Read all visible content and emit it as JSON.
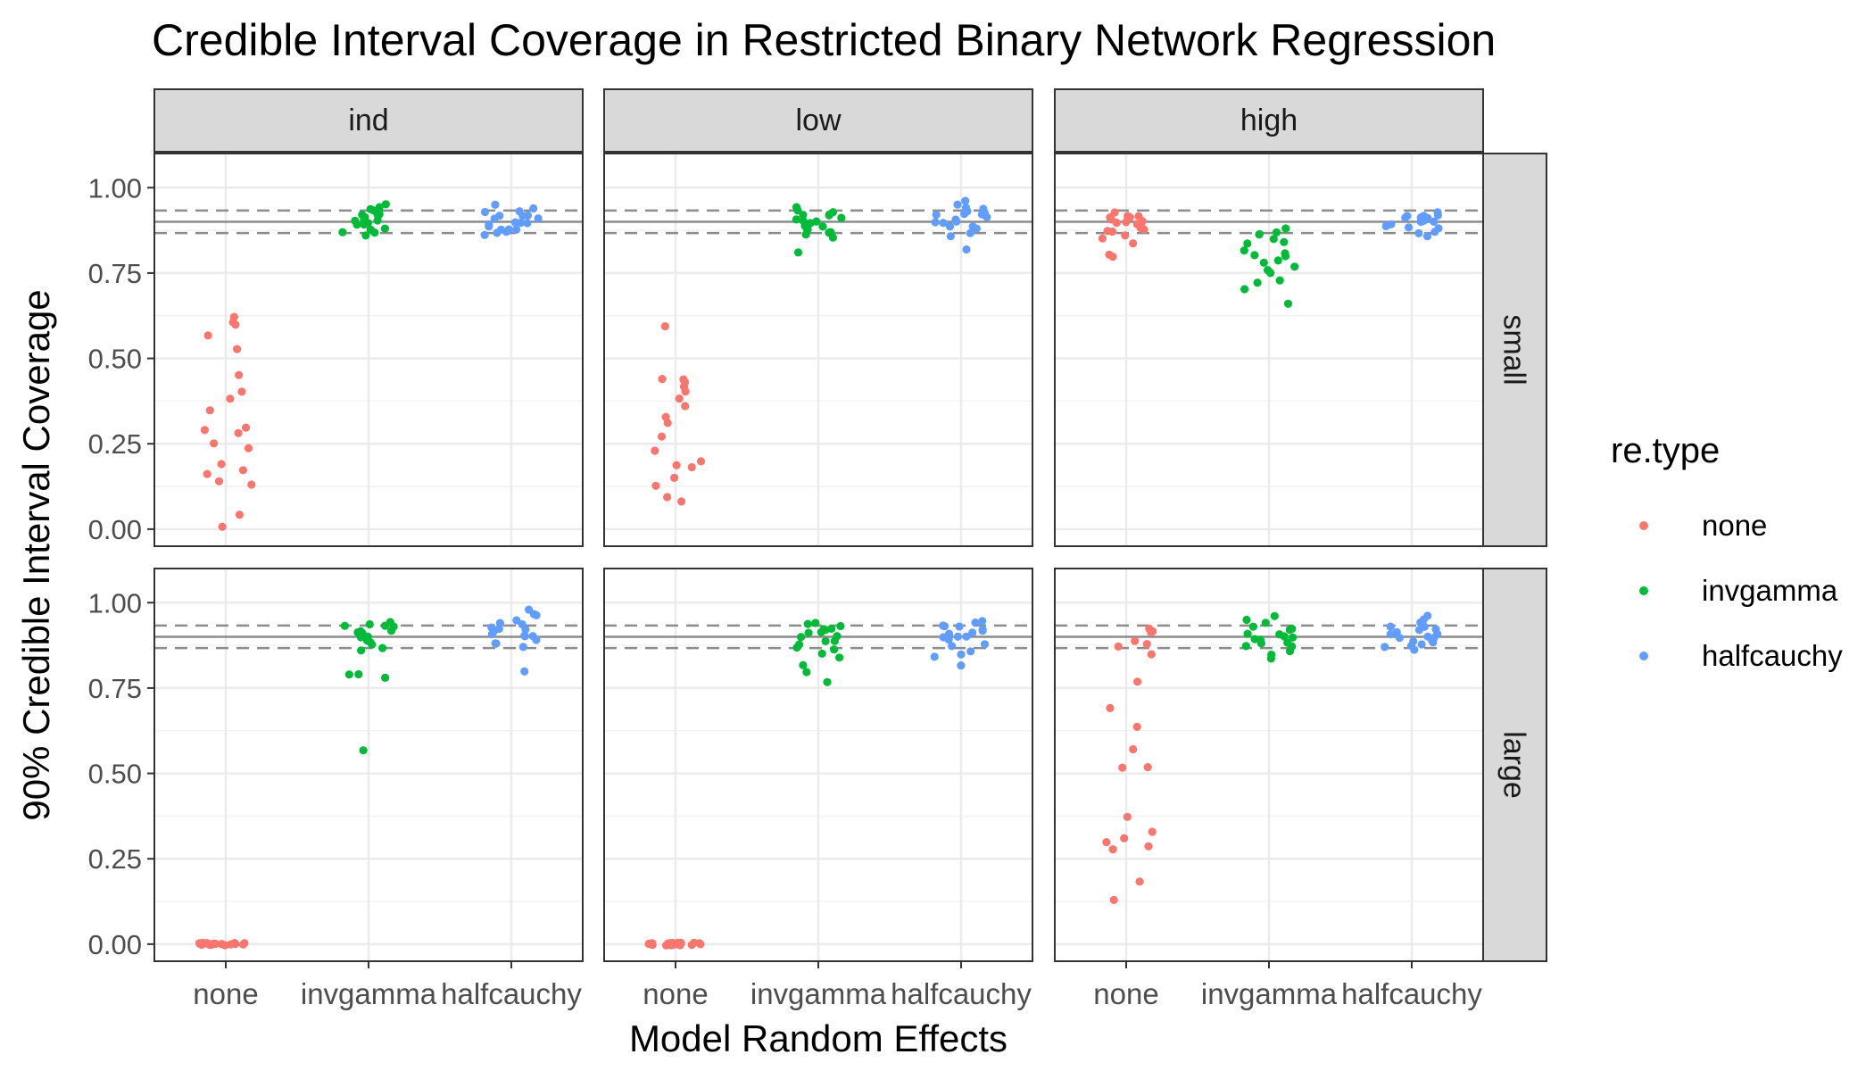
{
  "chart_data": {
    "type": "scatter",
    "title": "Credible Interval Coverage in Restricted Binary Network Regression",
    "xlabel": "Model Random Effects",
    "ylabel": "90% Credible Interval Coverage",
    "categories": [
      "none",
      "invgamma",
      "halfcauchy"
    ],
    "ylim": [
      -0.05,
      1.1
    ],
    "yticks": [
      0.0,
      0.25,
      0.5,
      0.75,
      1.0
    ],
    "ytick_labels": [
      "0.00",
      "0.25",
      "0.50",
      "0.75",
      "1.00"
    ],
    "col_facets": [
      "ind",
      "low",
      "high"
    ],
    "row_facets": [
      "small",
      "large"
    ],
    "reference_lines": {
      "solid": 0.9,
      "dashed": [
        0.867,
        0.933
      ]
    },
    "grid": true,
    "legend": {
      "title": "re.type",
      "placement": "right",
      "entries": [
        {
          "name": "none",
          "color": "#F8766D"
        },
        {
          "name": "invgamma",
          "color": "#00BA38"
        },
        {
          "name": "halfcauchy",
          "color": "#619CFF"
        }
      ]
    },
    "panels": [
      {
        "row": "small",
        "col": "ind",
        "values": {
          "none": [
            0.62,
            0.61,
            0.6,
            0.57,
            0.53,
            0.45,
            0.4,
            0.38,
            0.35,
            0.3,
            0.29,
            0.28,
            0.25,
            0.24,
            0.19,
            0.17,
            0.16,
            0.14,
            0.13,
            0.04,
            0.01
          ],
          "invgamma": [
            0.95,
            0.94,
            0.94,
            0.93,
            0.93,
            0.92,
            0.92,
            0.91,
            0.91,
            0.9,
            0.9,
            0.89,
            0.89,
            0.88,
            0.88,
            0.87,
            0.87,
            0.86,
            0.92,
            0.9
          ],
          "halfcauchy": [
            0.95,
            0.94,
            0.93,
            0.93,
            0.92,
            0.92,
            0.91,
            0.91,
            0.9,
            0.9,
            0.89,
            0.89,
            0.88,
            0.88,
            0.87,
            0.87,
            0.86,
            0.92,
            0.9,
            0.88
          ]
        }
      },
      {
        "row": "small",
        "col": "low",
        "values": {
          "none": [
            0.59,
            0.44,
            0.44,
            0.43,
            0.42,
            0.4,
            0.38,
            0.36,
            0.33,
            0.31,
            0.27,
            0.23,
            0.2,
            0.19,
            0.18,
            0.15,
            0.13,
            0.09,
            0.08
          ],
          "invgamma": [
            0.94,
            0.93,
            0.93,
            0.92,
            0.92,
            0.91,
            0.91,
            0.9,
            0.9,
            0.89,
            0.89,
            0.88,
            0.88,
            0.87,
            0.87,
            0.86,
            0.85,
            0.81,
            0.9,
            0.92
          ],
          "halfcauchy": [
            0.96,
            0.95,
            0.94,
            0.93,
            0.93,
            0.92,
            0.92,
            0.91,
            0.91,
            0.9,
            0.9,
            0.89,
            0.89,
            0.88,
            0.87,
            0.86,
            0.82,
            0.92,
            0.94,
            0.9
          ]
        }
      },
      {
        "row": "small",
        "col": "high",
        "values": {
          "none": [
            0.93,
            0.92,
            0.92,
            0.91,
            0.91,
            0.9,
            0.9,
            0.89,
            0.89,
            0.88,
            0.88,
            0.87,
            0.87,
            0.86,
            0.85,
            0.84,
            0.8,
            0.8,
            0.9,
            0.91
          ],
          "invgamma": [
            0.88,
            0.87,
            0.86,
            0.85,
            0.84,
            0.82,
            0.81,
            0.8,
            0.79,
            0.78,
            0.77,
            0.76,
            0.75,
            0.73,
            0.72,
            0.7,
            0.66,
            0.86,
            0.84,
            0.8
          ],
          "halfcauchy": [
            0.93,
            0.92,
            0.92,
            0.91,
            0.91,
            0.9,
            0.9,
            0.89,
            0.89,
            0.88,
            0.88,
            0.87,
            0.87,
            0.86,
            0.91,
            0.9,
            0.89,
            0.92
          ]
        }
      },
      {
        "row": "large",
        "col": "ind",
        "values": {
          "none": [
            0,
            0,
            0,
            0,
            0,
            0,
            0,
            0,
            0,
            0,
            0,
            0,
            0,
            0,
            0,
            0,
            0,
            0,
            0,
            0
          ],
          "invgamma": [
            0.94,
            0.94,
            0.93,
            0.93,
            0.92,
            0.92,
            0.91,
            0.9,
            0.9,
            0.89,
            0.88,
            0.88,
            0.87,
            0.86,
            0.79,
            0.79,
            0.78,
            0.57,
            0.93,
            0.91
          ],
          "halfcauchy": [
            0.98,
            0.97,
            0.96,
            0.95,
            0.94,
            0.93,
            0.92,
            0.91,
            0.91,
            0.9,
            0.9,
            0.89,
            0.88,
            0.88,
            0.87,
            0.8,
            0.94,
            0.92,
            0.9
          ]
        }
      },
      {
        "row": "large",
        "col": "low",
        "values": {
          "none": [
            0,
            0,
            0,
            0,
            0,
            0,
            0,
            0,
            0,
            0,
            0,
            0,
            0,
            0,
            0,
            0,
            0,
            0,
            0,
            0
          ],
          "invgamma": [
            0.94,
            0.94,
            0.93,
            0.92,
            0.92,
            0.91,
            0.91,
            0.9,
            0.9,
            0.89,
            0.89,
            0.88,
            0.87,
            0.86,
            0.85,
            0.84,
            0.82,
            0.8,
            0.77,
            0.92
          ],
          "halfcauchy": [
            0.95,
            0.94,
            0.93,
            0.93,
            0.92,
            0.91,
            0.91,
            0.9,
            0.9,
            0.89,
            0.88,
            0.87,
            0.86,
            0.85,
            0.84,
            0.82,
            0.92,
            0.9,
            0.93
          ]
        }
      },
      {
        "row": "large",
        "col": "high",
        "values": {
          "none": [
            0.92,
            0.92,
            0.91,
            0.89,
            0.88,
            0.87,
            0.85,
            0.77,
            0.69,
            0.64,
            0.57,
            0.52,
            0.52,
            0.37,
            0.33,
            0.31,
            0.3,
            0.29,
            0.28,
            0.18,
            0.13
          ],
          "invgamma": [
            0.96,
            0.95,
            0.94,
            0.93,
            0.92,
            0.91,
            0.91,
            0.9,
            0.9,
            0.89,
            0.88,
            0.88,
            0.87,
            0.86,
            0.85,
            0.84,
            0.92,
            0.89,
            0.87
          ],
          "halfcauchy": [
            0.96,
            0.95,
            0.94,
            0.93,
            0.92,
            0.92,
            0.91,
            0.91,
            0.9,
            0.9,
            0.89,
            0.89,
            0.88,
            0.88,
            0.87,
            0.87,
            0.86,
            0.91,
            0.9,
            0.93
          ]
        }
      }
    ]
  }
}
